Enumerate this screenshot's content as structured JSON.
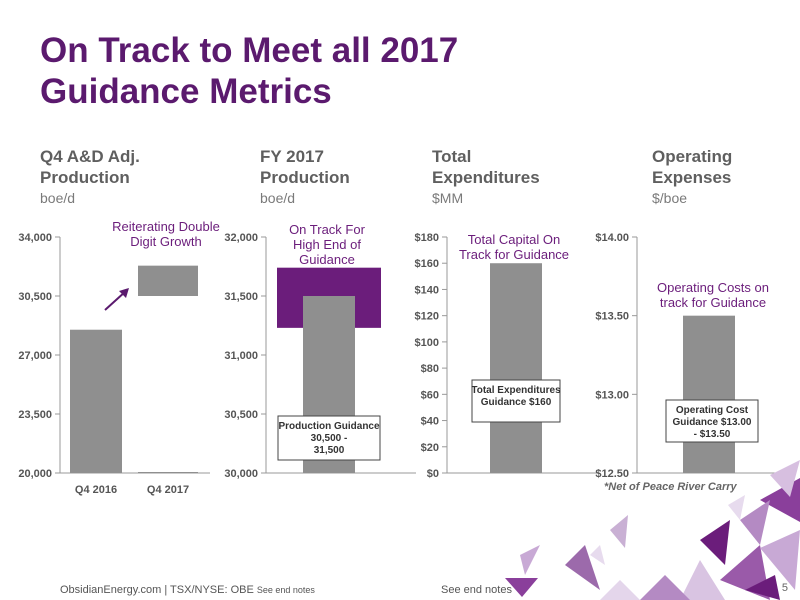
{
  "slide": {
    "title": "On Track to Meet all 2017 Guidance Metrics",
    "note": "*Net of Peace River Carry",
    "footer_left": "ObsidianEnergy.com | TSX/NYSE: OBE",
    "footer_notes_left": "See end notes",
    "footer_notes_center": "See end notes",
    "page_number": "5",
    "colors": {
      "title": "#5b1a6e",
      "bar": "#8f8f8f",
      "band": "#6b1d7b",
      "label": "#6b1d7b"
    }
  },
  "panels": [
    {
      "heading": "Q4 A&D Adj. Production",
      "unit": "boe/d"
    },
    {
      "heading": "FY 2017 Production",
      "unit": "boe/d"
    },
    {
      "heading": "Total Expenditures",
      "unit": "$MM"
    },
    {
      "heading": "Operating Expenses",
      "unit": "$/boe"
    }
  ],
  "chart_data": [
    {
      "type": "bar",
      "categories": [
        "Q4 2016",
        "Q4 2017"
      ],
      "ylim": [
        20000,
        34000
      ],
      "yticks": [
        "20,000",
        "23,500",
        "27,000",
        "30,500",
        "34,000"
      ],
      "series": [
        {
          "values": [
            28500,
            20000
          ]
        }
      ],
      "ranges": [
        {
          "category": "Q4 2017",
          "low": 30500,
          "high": 32300
        }
      ],
      "annotation": "Reiterating Double Digit Growth"
    },
    {
      "type": "bar",
      "ylim": [
        30000,
        32000
      ],
      "yticks": [
        "30,000",
        "30,500",
        "31,000",
        "31,500",
        "32,000"
      ],
      "series": [
        {
          "values": [
            31500
          ]
        }
      ],
      "ranges": [
        {
          "low": 31230,
          "high": 31740
        }
      ],
      "annotation": "On Track For High End of Guidance",
      "callout": "Production Guidance 30,500 - 31,500"
    },
    {
      "type": "bar",
      "ylim": [
        0,
        180
      ],
      "yticks": [
        "$0",
        "$20",
        "$40",
        "$60",
        "$80",
        "$100",
        "$120",
        "$140",
        "$160",
        "$180"
      ],
      "series": [
        {
          "values": [
            160
          ]
        }
      ],
      "annotation": "Total Capital On Track for Guidance",
      "callout": "Total Expenditures Guidance $160"
    },
    {
      "type": "bar",
      "ylim": [
        12.5,
        14.0
      ],
      "yticks": [
        "$12.50",
        "$13.00",
        "$13.50",
        "$14.00"
      ],
      "series": [
        {
          "values": [
            13.5
          ]
        }
      ],
      "annotation": "Operating Costs on track for Guidance",
      "callout": "Operating Cost Guidance $13.00 - $13.50"
    }
  ]
}
